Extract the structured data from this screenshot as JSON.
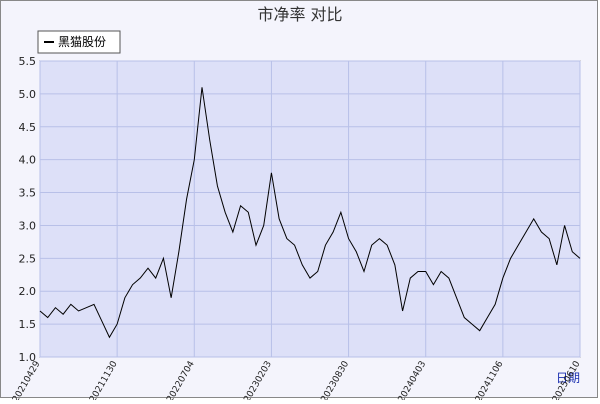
{
  "chart_data": {
    "type": "line",
    "title": "市净率  对比",
    "x_label": "日期",
    "categories": [
      "20210429",
      null,
      null,
      null,
      null,
      null,
      null,
      null,
      null,
      null,
      "20211130",
      null,
      null,
      null,
      null,
      null,
      null,
      null,
      null,
      null,
      "20220704",
      null,
      null,
      null,
      null,
      null,
      null,
      null,
      null,
      null,
      "20230203",
      null,
      null,
      null,
      null,
      null,
      null,
      null,
      null,
      null,
      "20230830",
      null,
      null,
      null,
      null,
      null,
      null,
      null,
      null,
      null,
      "20240403",
      null,
      null,
      null,
      null,
      null,
      null,
      null,
      null,
      null,
      "20241106",
      null,
      null,
      null,
      null,
      null,
      null,
      null,
      null,
      null,
      "20250610"
    ],
    "series": [
      {
        "name": "黑猫股份",
        "color": "#000000",
        "values": [
          1.7,
          1.6,
          1.75,
          1.65,
          1.8,
          1.7,
          1.75,
          1.8,
          1.55,
          1.3,
          1.5,
          1.9,
          2.1,
          2.2,
          2.35,
          2.2,
          2.5,
          1.9,
          2.6,
          3.4,
          4.0,
          5.1,
          4.3,
          3.6,
          3.2,
          2.9,
          3.3,
          3.2,
          2.7,
          3.0,
          3.8,
          3.1,
          2.8,
          2.7,
          2.4,
          2.2,
          2.3,
          2.7,
          2.9,
          3.2,
          2.8,
          2.6,
          2.3,
          2.7,
          2.8,
          2.7,
          2.4,
          1.7,
          2.2,
          2.3,
          2.3,
          2.1,
          2.3,
          2.2,
          1.9,
          1.6,
          1.5,
          1.4,
          1.6,
          1.8,
          2.2,
          2.5,
          2.7,
          2.9,
          3.1,
          2.9,
          2.8,
          2.4,
          3.0,
          2.6,
          2.5
        ]
      }
    ],
    "ylim": [
      1,
      5.5
    ],
    "yticks": [
      {
        "value": 1,
        "label": "1.0"
      },
      1.5,
      {
        "value": 2,
        "label": "2.0"
      },
      2.5,
      {
        "value": 3,
        "label": "3.0"
      },
      3.5,
      {
        "value": 4,
        "label": "4.0"
      },
      4.5,
      {
        "value": 5,
        "label": "5.0"
      },
      5.5
    ],
    "grid": true,
    "legend": "top-left"
  }
}
